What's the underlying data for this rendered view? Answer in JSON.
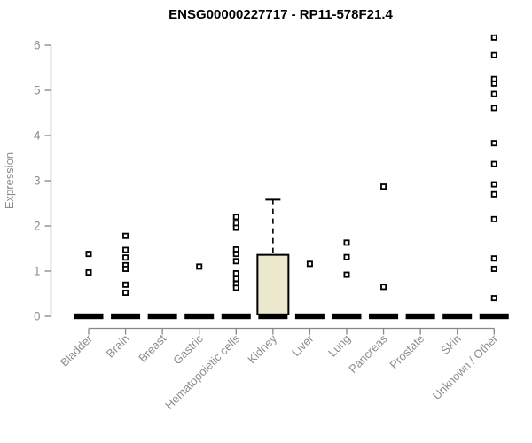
{
  "title": "ENSG00000227717 - RP11-578F21.4",
  "chart_data": {
    "type": "boxplot",
    "title": "ENSG00000227717 - RP11-578F21.4",
    "xlabel": "",
    "ylabel": "Expression",
    "ylim": [
      0,
      6.2
    ],
    "yticks": [
      0,
      1,
      2,
      3,
      4,
      5,
      6
    ],
    "grid": "off",
    "legend": "none",
    "categories": [
      "Bladder",
      "Brain",
      "Breast",
      "Gastric",
      "Hematopoietic cells",
      "Kidney",
      "Liver",
      "Lung",
      "Pancreas",
      "Prostate",
      "Skin",
      "Unknown / Other"
    ],
    "boxes": [
      {
        "category": "Bladder",
        "q1": 0,
        "median": 0,
        "q3": 0,
        "whisker_low": 0,
        "whisker_high": 0,
        "outliers": [
          1.38,
          0.97
        ]
      },
      {
        "category": "Brain",
        "q1": 0,
        "median": 0,
        "q3": 0,
        "whisker_low": 0,
        "whisker_high": 0,
        "outliers": [
          1.78,
          1.47,
          1.3,
          1.13,
          1.05,
          0.7,
          0.52
        ]
      },
      {
        "category": "Breast",
        "q1": 0,
        "median": 0,
        "q3": 0,
        "whisker_low": 0,
        "whisker_high": 0,
        "outliers": []
      },
      {
        "category": "Gastric",
        "q1": 0,
        "median": 0,
        "q3": 0,
        "whisker_low": 0,
        "whisker_high": 0,
        "outliers": [
          1.1
        ]
      },
      {
        "category": "Hematopoietic cells",
        "q1": 0,
        "median": 0,
        "q3": 0,
        "whisker_low": 0,
        "whisker_high": 0,
        "outliers": [
          2.2,
          2.06,
          1.96,
          1.48,
          1.38,
          1.22,
          0.95,
          0.83,
          0.72,
          0.63
        ]
      },
      {
        "category": "Kidney",
        "q1": 0,
        "median": 0,
        "q3": 1.36,
        "whisker_low": 0,
        "whisker_high": 2.58,
        "outliers": []
      },
      {
        "category": "Liver",
        "q1": 0,
        "median": 0,
        "q3": 0,
        "whisker_low": 0,
        "whisker_high": 0,
        "outliers": [
          1.16
        ]
      },
      {
        "category": "Lung",
        "q1": 0,
        "median": 0,
        "q3": 0,
        "whisker_low": 0,
        "whisker_high": 0,
        "outliers": [
          1.63,
          1.31,
          0.92
        ]
      },
      {
        "category": "Pancreas",
        "q1": 0,
        "median": 0,
        "q3": 0,
        "whisker_low": 0,
        "whisker_high": 0,
        "outliers": [
          2.87,
          0.65
        ]
      },
      {
        "category": "Prostate",
        "q1": 0,
        "median": 0,
        "q3": 0,
        "whisker_low": 0,
        "whisker_high": 0,
        "outliers": []
      },
      {
        "category": "Skin",
        "q1": 0,
        "median": 0,
        "q3": 0,
        "whisker_low": 0,
        "whisker_high": 0,
        "outliers": []
      },
      {
        "category": "Unknown / Other",
        "q1": 0,
        "median": 0,
        "q3": 0,
        "whisker_low": 0,
        "whisker_high": 0,
        "outliers": [
          6.17,
          5.78,
          5.25,
          5.15,
          4.92,
          4.61,
          3.83,
          3.37,
          2.92,
          2.7,
          2.15,
          1.28,
          1.05,
          0.4
        ]
      }
    ],
    "colors": {
      "box_fill": "#ece8cd",
      "box_stroke": "#000000",
      "median": "#000000",
      "outlier_stroke": "#000000",
      "outlier_fill": "#ffffff",
      "axis": "#878787",
      "tick_text": "#8d8d8d",
      "title_text": "#000000",
      "background": "#ffffff"
    }
  }
}
